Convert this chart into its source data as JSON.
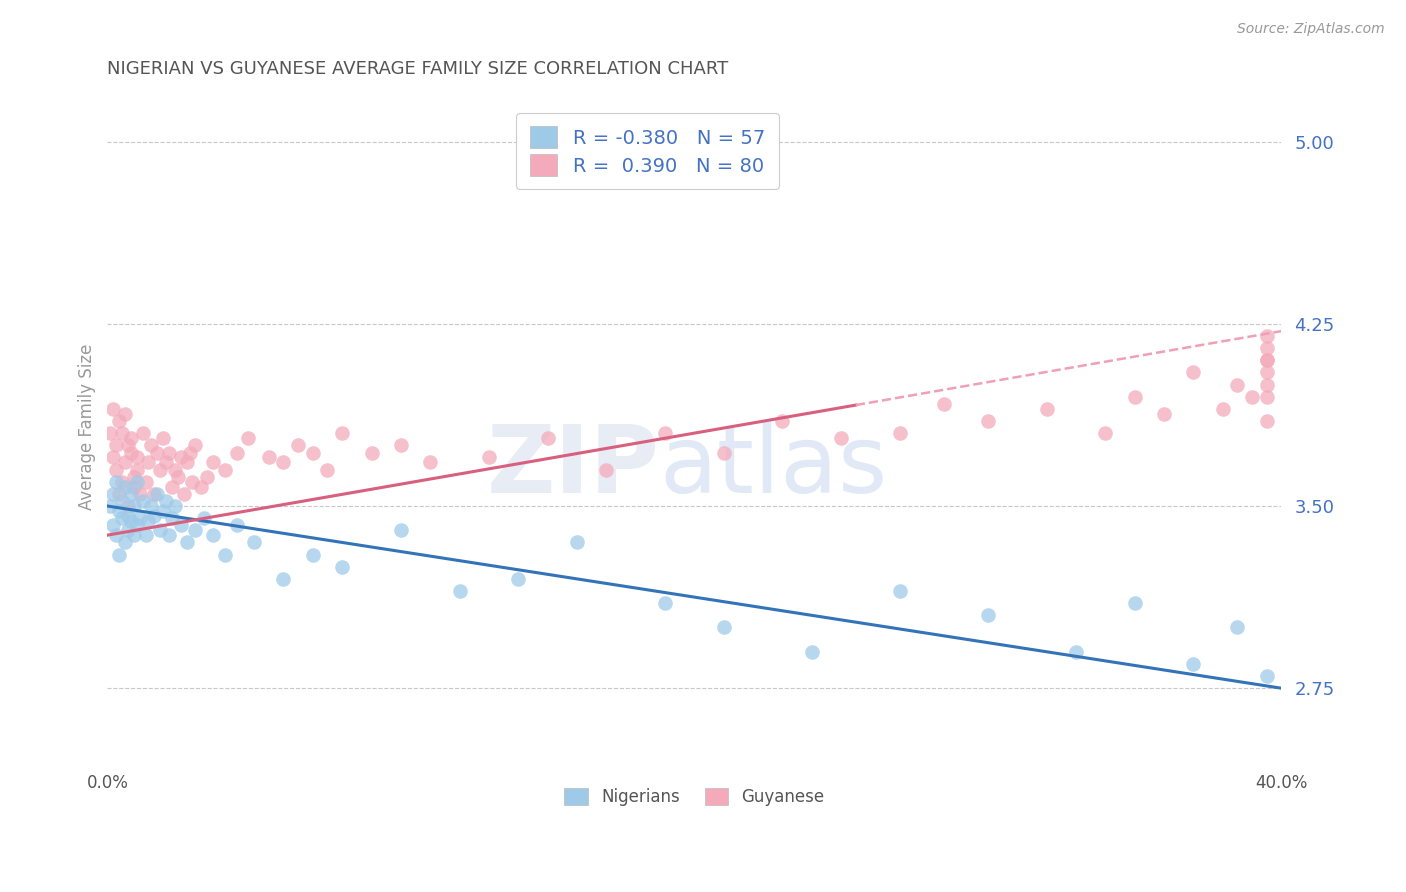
{
  "title": "NIGERIAN VS GUYANESE AVERAGE FAMILY SIZE CORRELATION CHART",
  "source_text": "Source: ZipAtlas.com",
  "ylabel": "Average Family Size",
  "xlim": [
    0.0,
    0.4
  ],
  "ylim": [
    2.45,
    5.2
  ],
  "yticks": [
    2.75,
    3.5,
    4.25,
    5.0
  ],
  "xticks": [
    0.0,
    0.1,
    0.2,
    0.3,
    0.4
  ],
  "xticklabels": [
    "0.0%",
    "",
    "",
    "",
    "40.0%"
  ],
  "nigerians_color": "#9ECAE8",
  "guyanese_color": "#F4AABB",
  "trend_blue": "#3373B8",
  "trend_pink": "#D95F7F",
  "trend_pink_dash": "#F0A0B5",
  "background_color": "#ffffff",
  "grid_color": "#c8c8c8",
  "title_color": "#555555",
  "ytick_color": "#4472C4",
  "xtick_color": "#555555",
  "legend_label_color": "#4472C4",
  "watermark_color": "#d0ddf0",
  "R_nigerian": -0.38,
  "N_nigerian": 57,
  "R_guyanese": 0.39,
  "N_guyanese": 80,
  "watermark": "ZIPatlas",
  "nigerian_x": [
    0.001,
    0.002,
    0.002,
    0.003,
    0.003,
    0.004,
    0.004,
    0.005,
    0.005,
    0.006,
    0.006,
    0.007,
    0.007,
    0.008,
    0.008,
    0.009,
    0.009,
    0.01,
    0.01,
    0.011,
    0.012,
    0.013,
    0.014,
    0.015,
    0.016,
    0.017,
    0.018,
    0.019,
    0.02,
    0.021,
    0.022,
    0.023,
    0.025,
    0.027,
    0.03,
    0.033,
    0.036,
    0.04,
    0.044,
    0.05,
    0.06,
    0.07,
    0.08,
    0.1,
    0.12,
    0.14,
    0.16,
    0.19,
    0.21,
    0.24,
    0.27,
    0.3,
    0.33,
    0.35,
    0.37,
    0.385,
    0.395
  ],
  "nigerian_y": [
    3.5,
    3.55,
    3.42,
    3.6,
    3.38,
    3.48,
    3.3,
    3.52,
    3.45,
    3.58,
    3.35,
    3.46,
    3.4,
    3.55,
    3.44,
    3.5,
    3.38,
    3.42,
    3.6,
    3.45,
    3.52,
    3.38,
    3.44,
    3.5,
    3.46,
    3.55,
    3.4,
    3.48,
    3.52,
    3.38,
    3.45,
    3.5,
    3.42,
    3.35,
    3.4,
    3.45,
    3.38,
    3.3,
    3.42,
    3.35,
    3.2,
    3.3,
    3.25,
    3.4,
    3.15,
    3.2,
    3.35,
    3.1,
    3.0,
    2.9,
    3.15,
    3.05,
    2.9,
    3.1,
    2.85,
    3.0,
    2.8
  ],
  "guyanese_x": [
    0.001,
    0.002,
    0.002,
    0.003,
    0.003,
    0.004,
    0.004,
    0.005,
    0.005,
    0.006,
    0.006,
    0.007,
    0.007,
    0.008,
    0.008,
    0.009,
    0.009,
    0.01,
    0.01,
    0.011,
    0.012,
    0.013,
    0.014,
    0.015,
    0.016,
    0.017,
    0.018,
    0.019,
    0.02,
    0.021,
    0.022,
    0.023,
    0.024,
    0.025,
    0.026,
    0.027,
    0.028,
    0.029,
    0.03,
    0.032,
    0.034,
    0.036,
    0.04,
    0.044,
    0.048,
    0.055,
    0.06,
    0.065,
    0.07,
    0.075,
    0.08,
    0.09,
    0.1,
    0.11,
    0.13,
    0.15,
    0.17,
    0.19,
    0.21,
    0.23,
    0.25,
    0.27,
    0.285,
    0.3,
    0.32,
    0.34,
    0.35,
    0.36,
    0.37,
    0.38,
    0.385,
    0.39,
    0.395,
    0.395,
    0.395,
    0.395,
    0.395,
    0.395,
    0.395,
    0.395
  ],
  "guyanese_y": [
    3.8,
    3.9,
    3.7,
    3.75,
    3.65,
    3.85,
    3.55,
    3.8,
    3.6,
    3.88,
    3.68,
    3.75,
    3.5,
    3.72,
    3.78,
    3.58,
    3.62,
    3.7,
    3.65,
    3.55,
    3.8,
    3.6,
    3.68,
    3.75,
    3.55,
    3.72,
    3.65,
    3.78,
    3.68,
    3.72,
    3.58,
    3.65,
    3.62,
    3.7,
    3.55,
    3.68,
    3.72,
    3.6,
    3.75,
    3.58,
    3.62,
    3.68,
    3.65,
    3.72,
    3.78,
    3.7,
    3.68,
    3.75,
    3.72,
    3.65,
    3.8,
    3.72,
    3.75,
    3.68,
    3.7,
    3.78,
    3.65,
    3.8,
    3.72,
    3.85,
    3.78,
    3.8,
    3.92,
    3.85,
    3.9,
    3.8,
    3.95,
    3.88,
    4.05,
    3.9,
    4.0,
    3.95,
    3.85,
    4.1,
    3.95,
    4.15,
    4.05,
    4.0,
    4.2,
    4.1
  ]
}
